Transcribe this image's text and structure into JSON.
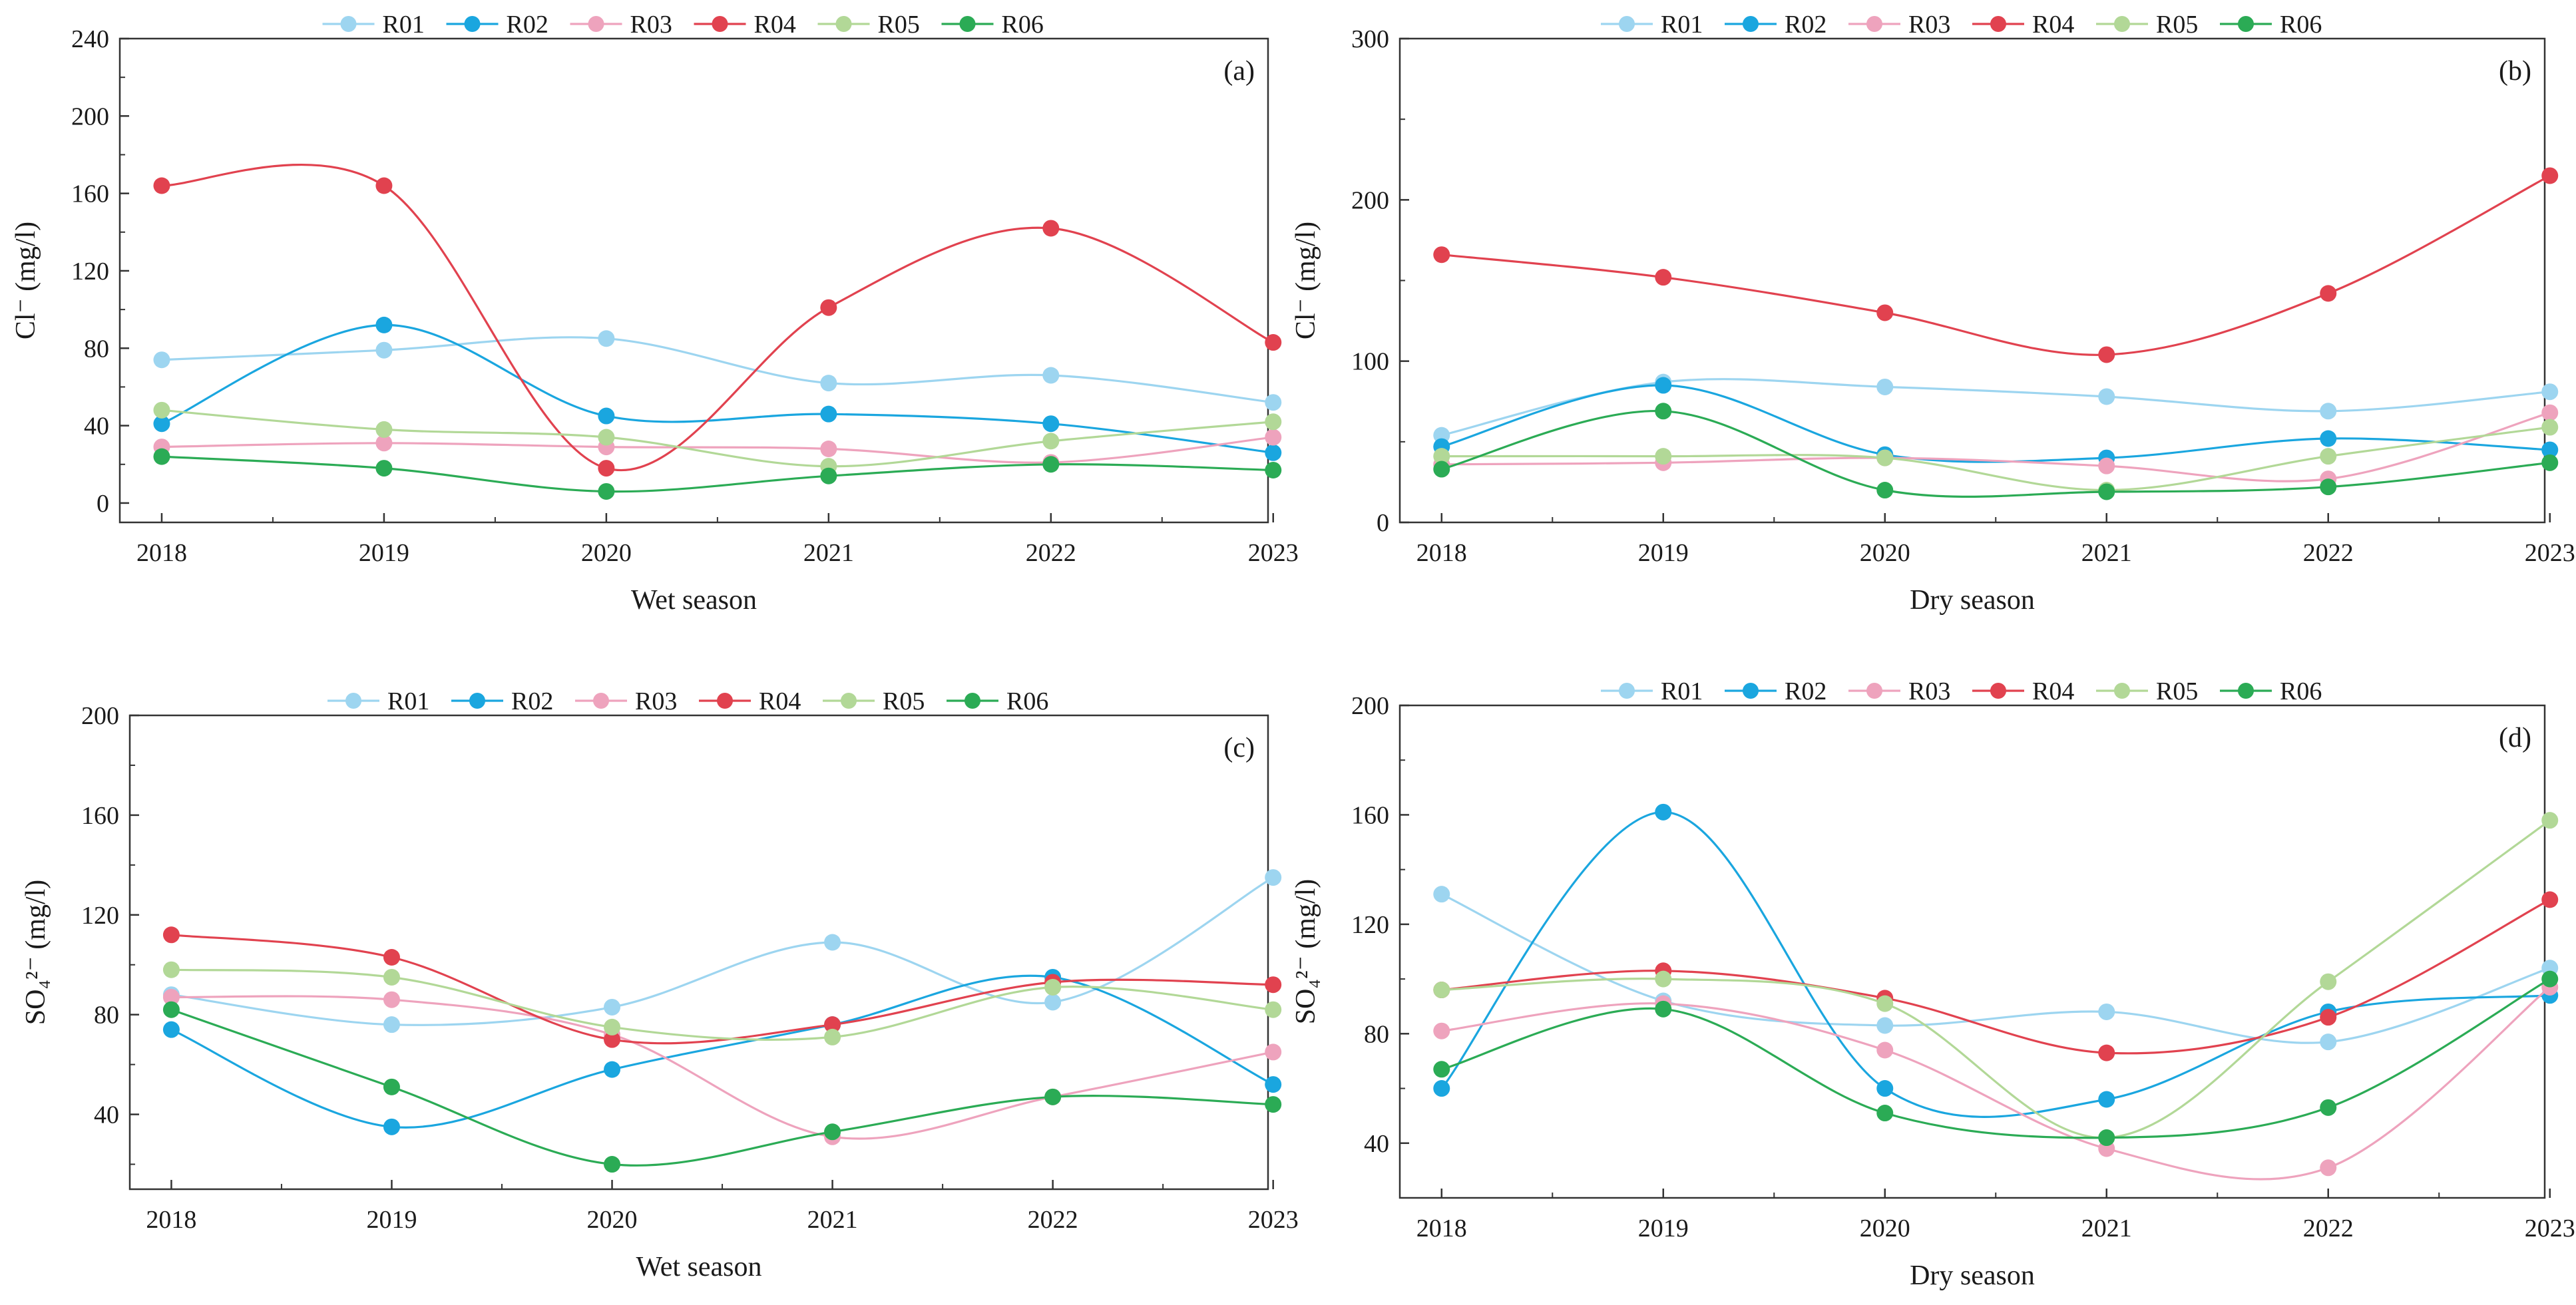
{
  "colors": {
    "R01": "#9dd5f0",
    "R02": "#1aa6df",
    "R03": "#eea3bd",
    "R04": "#e1424f",
    "R05": "#b2d897",
    "R06": "#2bab55"
  },
  "chart_data": [
    {
      "id": "a",
      "type": "line",
      "panel_label": "(a)",
      "title": "",
      "ylabel": "Cl⁻ (mg/l)",
      "xlabel": "Wet season",
      "categories": [
        "2018",
        "2019",
        "2020",
        "2021",
        "2022",
        "2023"
      ],
      "ylim": [
        -10,
        240
      ],
      "yticks": [
        0,
        40,
        80,
        120,
        160,
        200,
        240
      ],
      "series": [
        {
          "name": "R01",
          "values": [
            74,
            79,
            85,
            62,
            66,
            52
          ]
        },
        {
          "name": "R02",
          "values": [
            41,
            92,
            45,
            46,
            41,
            26
          ]
        },
        {
          "name": "R03",
          "values": [
            29,
            31,
            29,
            28,
            21,
            34
          ]
        },
        {
          "name": "R04",
          "values": [
            164,
            164,
            18,
            101,
            142,
            83
          ]
        },
        {
          "name": "R05",
          "values": [
            48,
            38,
            34,
            19,
            32,
            42
          ]
        },
        {
          "name": "R06",
          "values": [
            24,
            18,
            6,
            14,
            20,
            17
          ]
        }
      ]
    },
    {
      "id": "b",
      "type": "line",
      "panel_label": "(b)",
      "title": "",
      "ylabel": "Cl⁻ (mg/l)",
      "xlabel": "Dry season",
      "categories": [
        "2018",
        "2019",
        "2020",
        "2021",
        "2022",
        "2023"
      ],
      "ylim": [
        0,
        300
      ],
      "yticks": [
        0,
        100,
        200,
        300
      ],
      "series": [
        {
          "name": "R01",
          "values": [
            54,
            87,
            84,
            78,
            69,
            81
          ]
        },
        {
          "name": "R02",
          "values": [
            47,
            85,
            42,
            40,
            52,
            45
          ]
        },
        {
          "name": "R03",
          "values": [
            36,
            37,
            40,
            35,
            27,
            68
          ]
        },
        {
          "name": "R04",
          "values": [
            166,
            152,
            130,
            104,
            142,
            215
          ]
        },
        {
          "name": "R05",
          "values": [
            41,
            41,
            40,
            20,
            41,
            59
          ]
        },
        {
          "name": "R06",
          "values": [
            33,
            69,
            20,
            19,
            22,
            37
          ]
        }
      ]
    },
    {
      "id": "c",
      "type": "line",
      "panel_label": "(c)",
      "title": "",
      "ylabel": "SO₄²⁻ (mg/l)",
      "xlabel": "Wet season",
      "categories": [
        "2018",
        "2019",
        "2020",
        "2021",
        "2022",
        "2023"
      ],
      "ylim": [
        10,
        200
      ],
      "yticks": [
        40,
        80,
        120,
        160,
        200
      ],
      "series": [
        {
          "name": "R01",
          "values": [
            88,
            76,
            83,
            109,
            85,
            135
          ]
        },
        {
          "name": "R02",
          "values": [
            74,
            35,
            58,
            76,
            95,
            52
          ]
        },
        {
          "name": "R03",
          "values": [
            87,
            86,
            72,
            31,
            47,
            65
          ]
        },
        {
          "name": "R04",
          "values": [
            112,
            103,
            70,
            76,
            93,
            92
          ]
        },
        {
          "name": "R05",
          "values": [
            98,
            95,
            75,
            71,
            91,
            82
          ]
        },
        {
          "name": "R06",
          "values": [
            82,
            51,
            20,
            33,
            47,
            44
          ]
        }
      ]
    },
    {
      "id": "d",
      "type": "line",
      "panel_label": "(d)",
      "title": "",
      "ylabel": "SO₄²⁻ (mg/l)",
      "xlabel": "Dry season",
      "categories": [
        "2018",
        "2019",
        "2020",
        "2021",
        "2022",
        "2023"
      ],
      "ylim": [
        20,
        200
      ],
      "yticks": [
        40,
        80,
        120,
        160,
        200
      ],
      "series": [
        {
          "name": "R01",
          "values": [
            131,
            92,
            83,
            88,
            77,
            104
          ]
        },
        {
          "name": "R02",
          "values": [
            60,
            161,
            60,
            56,
            88,
            94
          ]
        },
        {
          "name": "R03",
          "values": [
            81,
            91,
            74,
            38,
            31,
            97
          ]
        },
        {
          "name": "R04",
          "values": [
            96,
            103,
            93,
            73,
            86,
            129
          ]
        },
        {
          "name": "R05",
          "values": [
            96,
            100,
            91,
            42,
            99,
            158
          ]
        },
        {
          "name": "R06",
          "values": [
            67,
            89,
            51,
            42,
            53,
            100
          ]
        }
      ]
    }
  ]
}
